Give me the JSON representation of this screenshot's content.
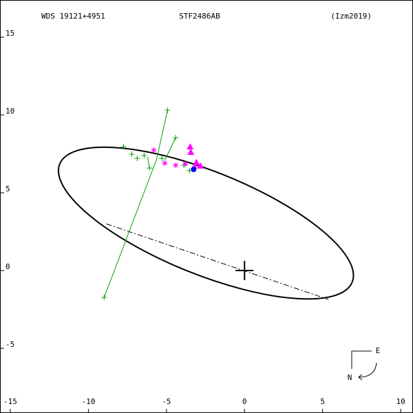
{
  "chart_data": {
    "type": "orbit",
    "title_left": "WDS 19121+4951",
    "title_center": "STF2486AB",
    "title_right": "(Izm2019)",
    "xlim": [
      -15.66,
      10.79
    ],
    "ylim": [
      -9.16,
      17.39
    ],
    "xticks": [
      -15,
      -10,
      -5,
      0,
      5,
      10
    ],
    "yticks": [
      -5,
      0,
      5,
      10,
      15
    ],
    "grid": false,
    "orbit": {
      "center": [
        -2.47,
        3.05
      ],
      "semi_axes": [
        10.1,
        3.3
      ],
      "angle": -22,
      "color": "#000000"
    },
    "node_line": {
      "x": [
        -8.85,
        5.37
      ],
      "y": [
        3.0,
        -1.86
      ]
    },
    "primary": [
      0,
      0
    ],
    "observations": [
      {
        "marker": "plus",
        "color": "#00a000",
        "x": [
          -4.93,
          -8.99,
          -4.41,
          -6.08,
          -7.75,
          -7.22,
          -6.87,
          -6.43,
          -5.29,
          -3.88,
          -3.52
        ],
        "y": [
          10.31,
          -1.73,
          8.54,
          6.59,
          7.96,
          7.48,
          7.21,
          7.39,
          7.21,
          6.77,
          6.42
        ],
        "fit_x": [
          -5.64,
          -5.64,
          -5.11,
          -6.21,
          null,
          null,
          null,
          null,
          null,
          null,
          null
        ],
        "fit_y": [
          7.12,
          7.12,
          7.08,
          7.3,
          null,
          null,
          null,
          null,
          null,
          null,
          null
        ]
      },
      {
        "marker": "asterisk",
        "color": "#ff00ff",
        "x": [
          -5.81,
          -5.11,
          -4.41,
          -3.79,
          -3.17
        ],
        "y": [
          7.74,
          6.9,
          6.77,
          6.86,
          6.68
        ]
      },
      {
        "marker": "triangle",
        "color": "#ff00ff",
        "x": [
          -3.48,
          -3.44,
          -3.08,
          -2.82
        ],
        "y": [
          7.96,
          7.61,
          6.95,
          6.73
        ]
      },
      {
        "marker": "circle",
        "color": "#0000ff",
        "x": [
          -3.26
        ],
        "y": [
          6.5
        ]
      }
    ],
    "compass": {
      "east": "E",
      "north": "N"
    }
  }
}
